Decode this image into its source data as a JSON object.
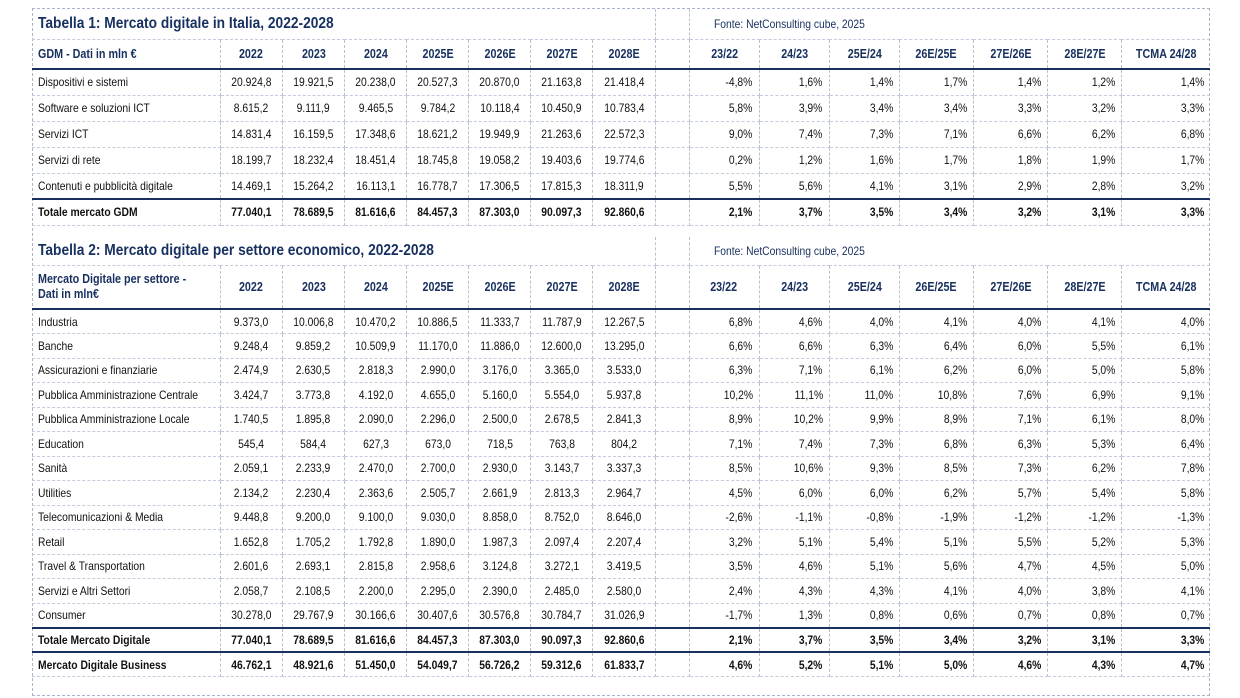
{
  "table1": {
    "title": "Tabella 1: Mercato digitale in Italia, 2022-2028",
    "source": "Fonte: NetConsulting cube, 2025",
    "header_label": "GDM - Dati in mln €",
    "year_headers": [
      "2022",
      "2023",
      "2024",
      "2025E",
      "2026E",
      "2027E",
      "2028E"
    ],
    "growth_headers": [
      "23/22",
      "24/23",
      "25E/24",
      "26E/25E",
      "27E/26E",
      "28E/27E",
      "TCMA 24/28"
    ],
    "rows": [
      {
        "label": "Dispositivi e sistemi",
        "values": [
          "20.924,8",
          "19.921,5",
          "20.238,0",
          "20.527,3",
          "20.870,0",
          "21.163,8",
          "21.418,4"
        ],
        "growth": [
          "-4,8%",
          "1,6%",
          "1,4%",
          "1,7%",
          "1,4%",
          "1,2%",
          "1,4%"
        ]
      },
      {
        "label": "Software e soluzioni ICT",
        "values": [
          "8.615,2",
          "9.111,9",
          "9.465,5",
          "9.784,2",
          "10.118,4",
          "10.450,9",
          "10.783,4"
        ],
        "growth": [
          "5,8%",
          "3,9%",
          "3,4%",
          "3,4%",
          "3,3%",
          "3,2%",
          "3,3%"
        ]
      },
      {
        "label": "Servizi ICT",
        "values": [
          "14.831,4",
          "16.159,5",
          "17.348,6",
          "18.621,2",
          "19.949,9",
          "21.263,6",
          "22.572,3"
        ],
        "growth": [
          "9,0%",
          "7,4%",
          "7,3%",
          "7,1%",
          "6,6%",
          "6,2%",
          "6,8%"
        ]
      },
      {
        "label": "Servizi di rete",
        "values": [
          "18.199,7",
          "18.232,4",
          "18.451,4",
          "18.745,8",
          "19.058,2",
          "19.403,6",
          "19.774,6"
        ],
        "growth": [
          "0,2%",
          "1,2%",
          "1,6%",
          "1,7%",
          "1,8%",
          "1,9%",
          "1,7%"
        ]
      },
      {
        "label": "Contenuti e pubblicità digitale",
        "values": [
          "14.469,1",
          "15.264,2",
          "16.113,1",
          "16.778,7",
          "17.306,5",
          "17.815,3",
          "18.311,9"
        ],
        "growth": [
          "5,5%",
          "5,6%",
          "4,1%",
          "3,1%",
          "2,9%",
          "2,8%",
          "3,2%"
        ]
      }
    ],
    "total": {
      "label": "Totale mercato GDM",
      "values": [
        "77.040,1",
        "78.689,5",
        "81.616,6",
        "84.457,3",
        "87.303,0",
        "90.097,3",
        "92.860,6"
      ],
      "growth": [
        "2,1%",
        "3,7%",
        "3,5%",
        "3,4%",
        "3,2%",
        "3,1%",
        "3,3%"
      ]
    }
  },
  "table2": {
    "title": "Tabella 2: Mercato digitale per settore economico, 2022-2028",
    "source": "Fonte: NetConsulting cube, 2025",
    "header_label_line1": "Mercato Digitale per settore -",
    "header_label_line2": "Dati in mln€",
    "year_headers": [
      "2022",
      "2023",
      "2024",
      "2025E",
      "2026E",
      "2027E",
      "2028E"
    ],
    "growth_headers": [
      "23/22",
      "24/23",
      "25E/24",
      "26E/25E",
      "27E/26E",
      "28E/27E",
      "TCMA 24/28"
    ],
    "rows": [
      {
        "label": "Industria",
        "values": [
          "9.373,0",
          "10.006,8",
          "10.470,2",
          "10.886,5",
          "11.333,7",
          "11.787,9",
          "12.267,5"
        ],
        "growth": [
          "6,8%",
          "4,6%",
          "4,0%",
          "4,1%",
          "4,0%",
          "4,1%",
          "4,0%"
        ]
      },
      {
        "label": "Banche",
        "values": [
          "9.248,4",
          "9.859,2",
          "10.509,9",
          "11.170,0",
          "11.886,0",
          "12.600,0",
          "13.295,0"
        ],
        "growth": [
          "6,6%",
          "6,6%",
          "6,3%",
          "6,4%",
          "6,0%",
          "5,5%",
          "6,1%"
        ]
      },
      {
        "label": "Assicurazioni e finanziarie",
        "values": [
          "2.474,9",
          "2.630,5",
          "2.818,3",
          "2.990,0",
          "3.176,0",
          "3.365,0",
          "3.533,0"
        ],
        "growth": [
          "6,3%",
          "7,1%",
          "6,1%",
          "6,2%",
          "6,0%",
          "5,0%",
          "5,8%"
        ]
      },
      {
        "label": "Pubblica Amministrazione Centrale",
        "values": [
          "3.424,7",
          "3.773,8",
          "4.192,0",
          "4.655,0",
          "5.160,0",
          "5.554,0",
          "5.937,8"
        ],
        "growth": [
          "10,2%",
          "11,1%",
          "11,0%",
          "10,8%",
          "7,6%",
          "6,9%",
          "9,1%"
        ]
      },
      {
        "label": "Pubblica Amministrazione Locale",
        "values": [
          "1.740,5",
          "1.895,8",
          "2.090,0",
          "2.296,0",
          "2.500,0",
          "2.678,5",
          "2.841,3"
        ],
        "growth": [
          "8,9%",
          "10,2%",
          "9,9%",
          "8,9%",
          "7,1%",
          "6,1%",
          "8,0%"
        ]
      },
      {
        "label": "Education",
        "values": [
          "545,4",
          "584,4",
          "627,3",
          "673,0",
          "718,5",
          "763,8",
          "804,2"
        ],
        "growth": [
          "7,1%",
          "7,4%",
          "7,3%",
          "6,8%",
          "6,3%",
          "5,3%",
          "6,4%"
        ]
      },
      {
        "label": "Sanità",
        "values": [
          "2.059,1",
          "2.233,9",
          "2.470,0",
          "2.700,0",
          "2.930,0",
          "3.143,7",
          "3.337,3"
        ],
        "growth": [
          "8,5%",
          "10,6%",
          "9,3%",
          "8,5%",
          "7,3%",
          "6,2%",
          "7,8%"
        ]
      },
      {
        "label": "Utilities",
        "values": [
          "2.134,2",
          "2.230,4",
          "2.363,6",
          "2.505,7",
          "2.661,9",
          "2.813,3",
          "2.964,7"
        ],
        "growth": [
          "4,5%",
          "6,0%",
          "6,0%",
          "6,2%",
          "5,7%",
          "5,4%",
          "5,8%"
        ]
      },
      {
        "label": "Telecomunicazioni & Media",
        "values": [
          "9.448,8",
          "9.200,0",
          "9.100,0",
          "9.030,0",
          "8.858,0",
          "8.752,0",
          "8.646,0"
        ],
        "growth": [
          "-2,6%",
          "-1,1%",
          "-0,8%",
          "-1,9%",
          "-1,2%",
          "-1,2%",
          "-1,3%"
        ]
      },
      {
        "label": "Retail",
        "values": [
          "1.652,8",
          "1.705,2",
          "1.792,8",
          "1.890,0",
          "1.987,3",
          "2.097,4",
          "2.207,4"
        ],
        "growth": [
          "3,2%",
          "5,1%",
          "5,4%",
          "5,1%",
          "5,5%",
          "5,2%",
          "5,3%"
        ]
      },
      {
        "label": "Travel & Transportation",
        "values": [
          "2.601,6",
          "2.693,1",
          "2.815,8",
          "2.958,6",
          "3.124,8",
          "3.272,1",
          "3.419,5"
        ],
        "growth": [
          "3,5%",
          "4,6%",
          "5,1%",
          "5,6%",
          "4,7%",
          "4,5%",
          "5,0%"
        ]
      },
      {
        "label": "Servizi e Altri Settori",
        "values": [
          "2.058,7",
          "2.108,5",
          "2.200,0",
          "2.295,0",
          "2.390,0",
          "2.485,0",
          "2.580,0"
        ],
        "growth": [
          "2,4%",
          "4,3%",
          "4,3%",
          "4,1%",
          "4,0%",
          "3,8%",
          "4,1%"
        ]
      },
      {
        "label": "Consumer",
        "values": [
          "30.278,0",
          "29.767,9",
          "30.166,6",
          "30.407,6",
          "30.576,8",
          "30.784,7",
          "31.026,9"
        ],
        "growth": [
          "-1,7%",
          "1,3%",
          "0,8%",
          "0,6%",
          "0,7%",
          "0,8%",
          "0,7%"
        ]
      }
    ],
    "total": {
      "label": "Totale Mercato Digitale",
      "values": [
        "77.040,1",
        "78.689,5",
        "81.616,6",
        "84.457,3",
        "87.303,0",
        "90.097,3",
        "92.860,6"
      ],
      "growth": [
        "2,1%",
        "3,7%",
        "3,5%",
        "3,4%",
        "3,2%",
        "3,1%",
        "3,3%"
      ]
    },
    "business": {
      "label": "Mercato Digitale Business",
      "values": [
        "46.762,1",
        "48.921,6",
        "51.450,0",
        "54.049,7",
        "56.726,2",
        "59.312,6",
        "61.833,7"
      ],
      "growth": [
        "4,6%",
        "5,2%",
        "5,1%",
        "5,0%",
        "4,6%",
        "4,3%",
        "4,7%"
      ]
    }
  }
}
